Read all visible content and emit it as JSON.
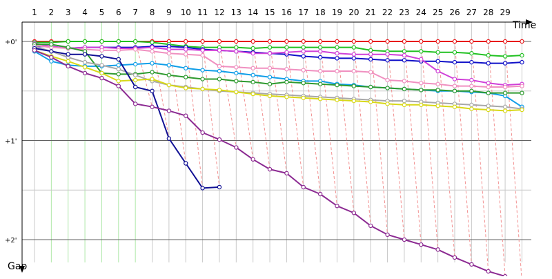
{
  "chart_data": {
    "type": "line",
    "title": "",
    "xlabel": "Time",
    "ylabel": "Gap",
    "x_ticks": [
      "1",
      "2",
      "3",
      "4",
      "5",
      "6",
      "7",
      "8",
      "9",
      "10",
      "11",
      "12",
      "13",
      "14",
      "15",
      "16",
      "17",
      "18",
      "19",
      "20",
      "21",
      "22",
      "23",
      "24",
      "25",
      "26",
      "27",
      "28",
      "29"
    ],
    "y_ticks": [
      "+0'",
      "+1'",
      "+2'"
    ],
    "ylim_minutes": [
      0,
      2.25
    ],
    "grid": true,
    "legend": "none",
    "colors": {
      "gridline": "#c8c8c8",
      "major_gridline": "#606060",
      "green_gridline": "#aee8a8",
      "lap_connector": "#f29090",
      "axis": "#000000"
    },
    "series": [
      {
        "color": "#e8191b",
        "x": [
          1,
          2,
          3,
          4,
          5,
          6,
          7,
          8,
          9,
          10,
          11,
          12,
          13,
          14,
          15,
          16,
          17,
          18,
          19,
          20,
          21,
          22,
          23,
          24,
          25,
          26,
          27,
          28,
          29,
          30
        ],
        "y": [
          0.0,
          0.0,
          0.0,
          0.0,
          0.0,
          0.0,
          0.0,
          0.0,
          0.0,
          0.0,
          0.0,
          0.0,
          0.0,
          0.0,
          0.0,
          0.0,
          0.0,
          0.0,
          0.0,
          0.0,
          0.0,
          0.0,
          0.0,
          0.0,
          0.0,
          0.0,
          0.0,
          0.0,
          0.0,
          0.0
        ]
      },
      {
        "color": "#22c122",
        "x": [
          1,
          2,
          3,
          4,
          5,
          6,
          7,
          8,
          9,
          10,
          11,
          12,
          13,
          14,
          15,
          16,
          17,
          18,
          19,
          20,
          21,
          22,
          23,
          24,
          25,
          26,
          27,
          28,
          29,
          30
        ],
        "y": [
          0.01,
          0.01,
          0.0,
          0.0,
          0.0,
          0.0,
          0.0,
          0.01,
          0.03,
          0.05,
          0.06,
          0.06,
          0.06,
          0.07,
          0.06,
          0.06,
          0.06,
          0.06,
          0.06,
          0.06,
          0.09,
          0.1,
          0.1,
          0.1,
          0.11,
          0.11,
          0.12,
          0.14,
          0.15,
          0.14
        ]
      },
      {
        "color": "#1010c8",
        "x": [
          1,
          2,
          3,
          4,
          5,
          6,
          7,
          8,
          9,
          10,
          11,
          12,
          13,
          14,
          15,
          16,
          17,
          18,
          19,
          20,
          21,
          22,
          23,
          24,
          25,
          26,
          27,
          28,
          29,
          30
        ],
        "y": [
          0.05,
          0.05,
          0.07,
          0.06,
          0.06,
          0.06,
          0.06,
          0.05,
          0.05,
          0.06,
          0.08,
          0.09,
          0.1,
          0.11,
          0.12,
          0.13,
          0.15,
          0.16,
          0.17,
          0.17,
          0.18,
          0.19,
          0.19,
          0.2,
          0.2,
          0.21,
          0.21,
          0.22,
          0.22,
          0.21
        ]
      },
      {
        "color": "#d040d8",
        "x": [
          1,
          2,
          3,
          4,
          5,
          6,
          7,
          8,
          9,
          10,
          11,
          12,
          13,
          14,
          15,
          16,
          17,
          18,
          19,
          20,
          21,
          22,
          23,
          24,
          25,
          26,
          27,
          28,
          29,
          30
        ],
        "y": [
          0.02,
          0.05,
          0.07,
          0.06,
          0.06,
          0.07,
          0.07,
          0.06,
          0.08,
          0.08,
          0.09,
          0.09,
          0.1,
          0.12,
          0.12,
          0.11,
          0.1,
          0.1,
          0.12,
          0.13,
          0.13,
          0.13,
          0.14,
          0.18,
          0.3,
          0.38,
          0.39,
          0.42,
          0.44,
          0.43
        ]
      },
      {
        "color": "#f090c0",
        "x": [
          1,
          2,
          3,
          4,
          5,
          6,
          7,
          8,
          9,
          10,
          11,
          12,
          13,
          14,
          15,
          16,
          17,
          18,
          19,
          20,
          21,
          22,
          23,
          24,
          25,
          26,
          27,
          28,
          29,
          30
        ],
        "y": [
          0.04,
          0.06,
          0.07,
          0.08,
          0.09,
          0.09,
          0.08,
          0.1,
          0.12,
          0.13,
          0.14,
          0.25,
          0.26,
          0.27,
          0.27,
          0.28,
          0.29,
          0.3,
          0.3,
          0.3,
          0.31,
          0.39,
          0.4,
          0.42,
          0.43,
          0.45,
          0.45,
          0.46,
          0.46,
          0.45
        ]
      },
      {
        "color": "#109ee8",
        "x": [
          1,
          2,
          3,
          4,
          5,
          6,
          7,
          8,
          9,
          10,
          11,
          12,
          13,
          14,
          15,
          16,
          17,
          18,
          19,
          20,
          21,
          22,
          23,
          24,
          25,
          26,
          27,
          28,
          29,
          30
        ],
        "y": [
          0.1,
          0.2,
          0.24,
          0.25,
          0.25,
          0.24,
          0.23,
          0.22,
          0.24,
          0.27,
          0.29,
          0.3,
          0.32,
          0.34,
          0.36,
          0.38,
          0.4,
          0.4,
          0.43,
          0.44,
          0.46,
          0.47,
          0.48,
          0.49,
          0.5,
          0.5,
          0.51,
          0.52,
          0.55,
          0.66
        ]
      },
      {
        "color": "#2e9a2e",
        "x": [
          1,
          2,
          3,
          4,
          5,
          6,
          7,
          8,
          9,
          10,
          11,
          12,
          13,
          14,
          15,
          16,
          17,
          18,
          19,
          20,
          21,
          22,
          23,
          24,
          25,
          26,
          27,
          28,
          29,
          30
        ],
        "y": [
          0.03,
          0.03,
          0.06,
          0.1,
          0.32,
          0.33,
          0.33,
          0.31,
          0.34,
          0.36,
          0.38,
          0.38,
          0.4,
          0.41,
          0.43,
          0.41,
          0.42,
          0.43,
          0.44,
          0.45,
          0.46,
          0.47,
          0.48,
          0.49,
          0.49,
          0.5,
          0.5,
          0.52,
          0.52,
          0.52
        ]
      },
      {
        "color": "#a8a8a8",
        "x": [
          1,
          2,
          3,
          4,
          5,
          6,
          7,
          8,
          9,
          10,
          11,
          12,
          13,
          14,
          15,
          16,
          17,
          18,
          19,
          20,
          21,
          22,
          23,
          24,
          25,
          26,
          27,
          28,
          29,
          30
        ],
        "y": [
          0.05,
          0.1,
          0.16,
          0.21,
          0.24,
          0.28,
          0.34,
          0.4,
          0.44,
          0.46,
          0.48,
          0.5,
          0.51,
          0.52,
          0.53,
          0.54,
          0.55,
          0.56,
          0.57,
          0.58,
          0.59,
          0.6,
          0.6,
          0.61,
          0.62,
          0.63,
          0.64,
          0.65,
          0.66,
          0.68
        ]
      },
      {
        "color": "#d8d818",
        "x": [
          1,
          2,
          3,
          4,
          5,
          6,
          7,
          8,
          9,
          10,
          11,
          12,
          13,
          14,
          15,
          16,
          17,
          18,
          19,
          20,
          21,
          22,
          23,
          24,
          25,
          26,
          27,
          28,
          29,
          30
        ],
        "y": [
          0.09,
          0.15,
          0.2,
          0.26,
          0.32,
          0.4,
          0.39,
          0.38,
          0.44,
          0.47,
          0.48,
          0.49,
          0.51,
          0.53,
          0.55,
          0.56,
          0.57,
          0.58,
          0.59,
          0.6,
          0.61,
          0.63,
          0.64,
          0.64,
          0.65,
          0.66,
          0.68,
          0.69,
          0.7,
          0.69
        ]
      },
      {
        "color": "#101094",
        "x": [
          1,
          2,
          3,
          4,
          5,
          6,
          7,
          8,
          9,
          10,
          11,
          12
        ],
        "y": [
          0.07,
          0.1,
          0.13,
          0.13,
          0.15,
          0.18,
          0.46,
          0.5,
          0.98,
          1.23,
          1.48,
          1.47
        ]
      },
      {
        "color": "#8c2a92",
        "x": [
          1,
          2,
          3,
          4,
          5,
          6,
          7,
          8,
          9,
          10,
          11,
          12,
          13,
          14,
          15,
          16,
          17,
          18,
          19,
          20,
          21,
          22,
          23,
          24,
          25,
          26,
          27,
          28,
          29,
          30
        ],
        "y": [
          0.09,
          0.16,
          0.25,
          0.32,
          0.37,
          0.45,
          0.63,
          0.66,
          0.7,
          0.75,
          0.92,
          0.99,
          1.07,
          1.19,
          1.29,
          1.33,
          1.47,
          1.54,
          1.66,
          1.73,
          1.86,
          1.95,
          2.0,
          2.05,
          2.1,
          2.18,
          2.25,
          2.32,
          2.37,
          2.43
        ]
      }
    ]
  }
}
